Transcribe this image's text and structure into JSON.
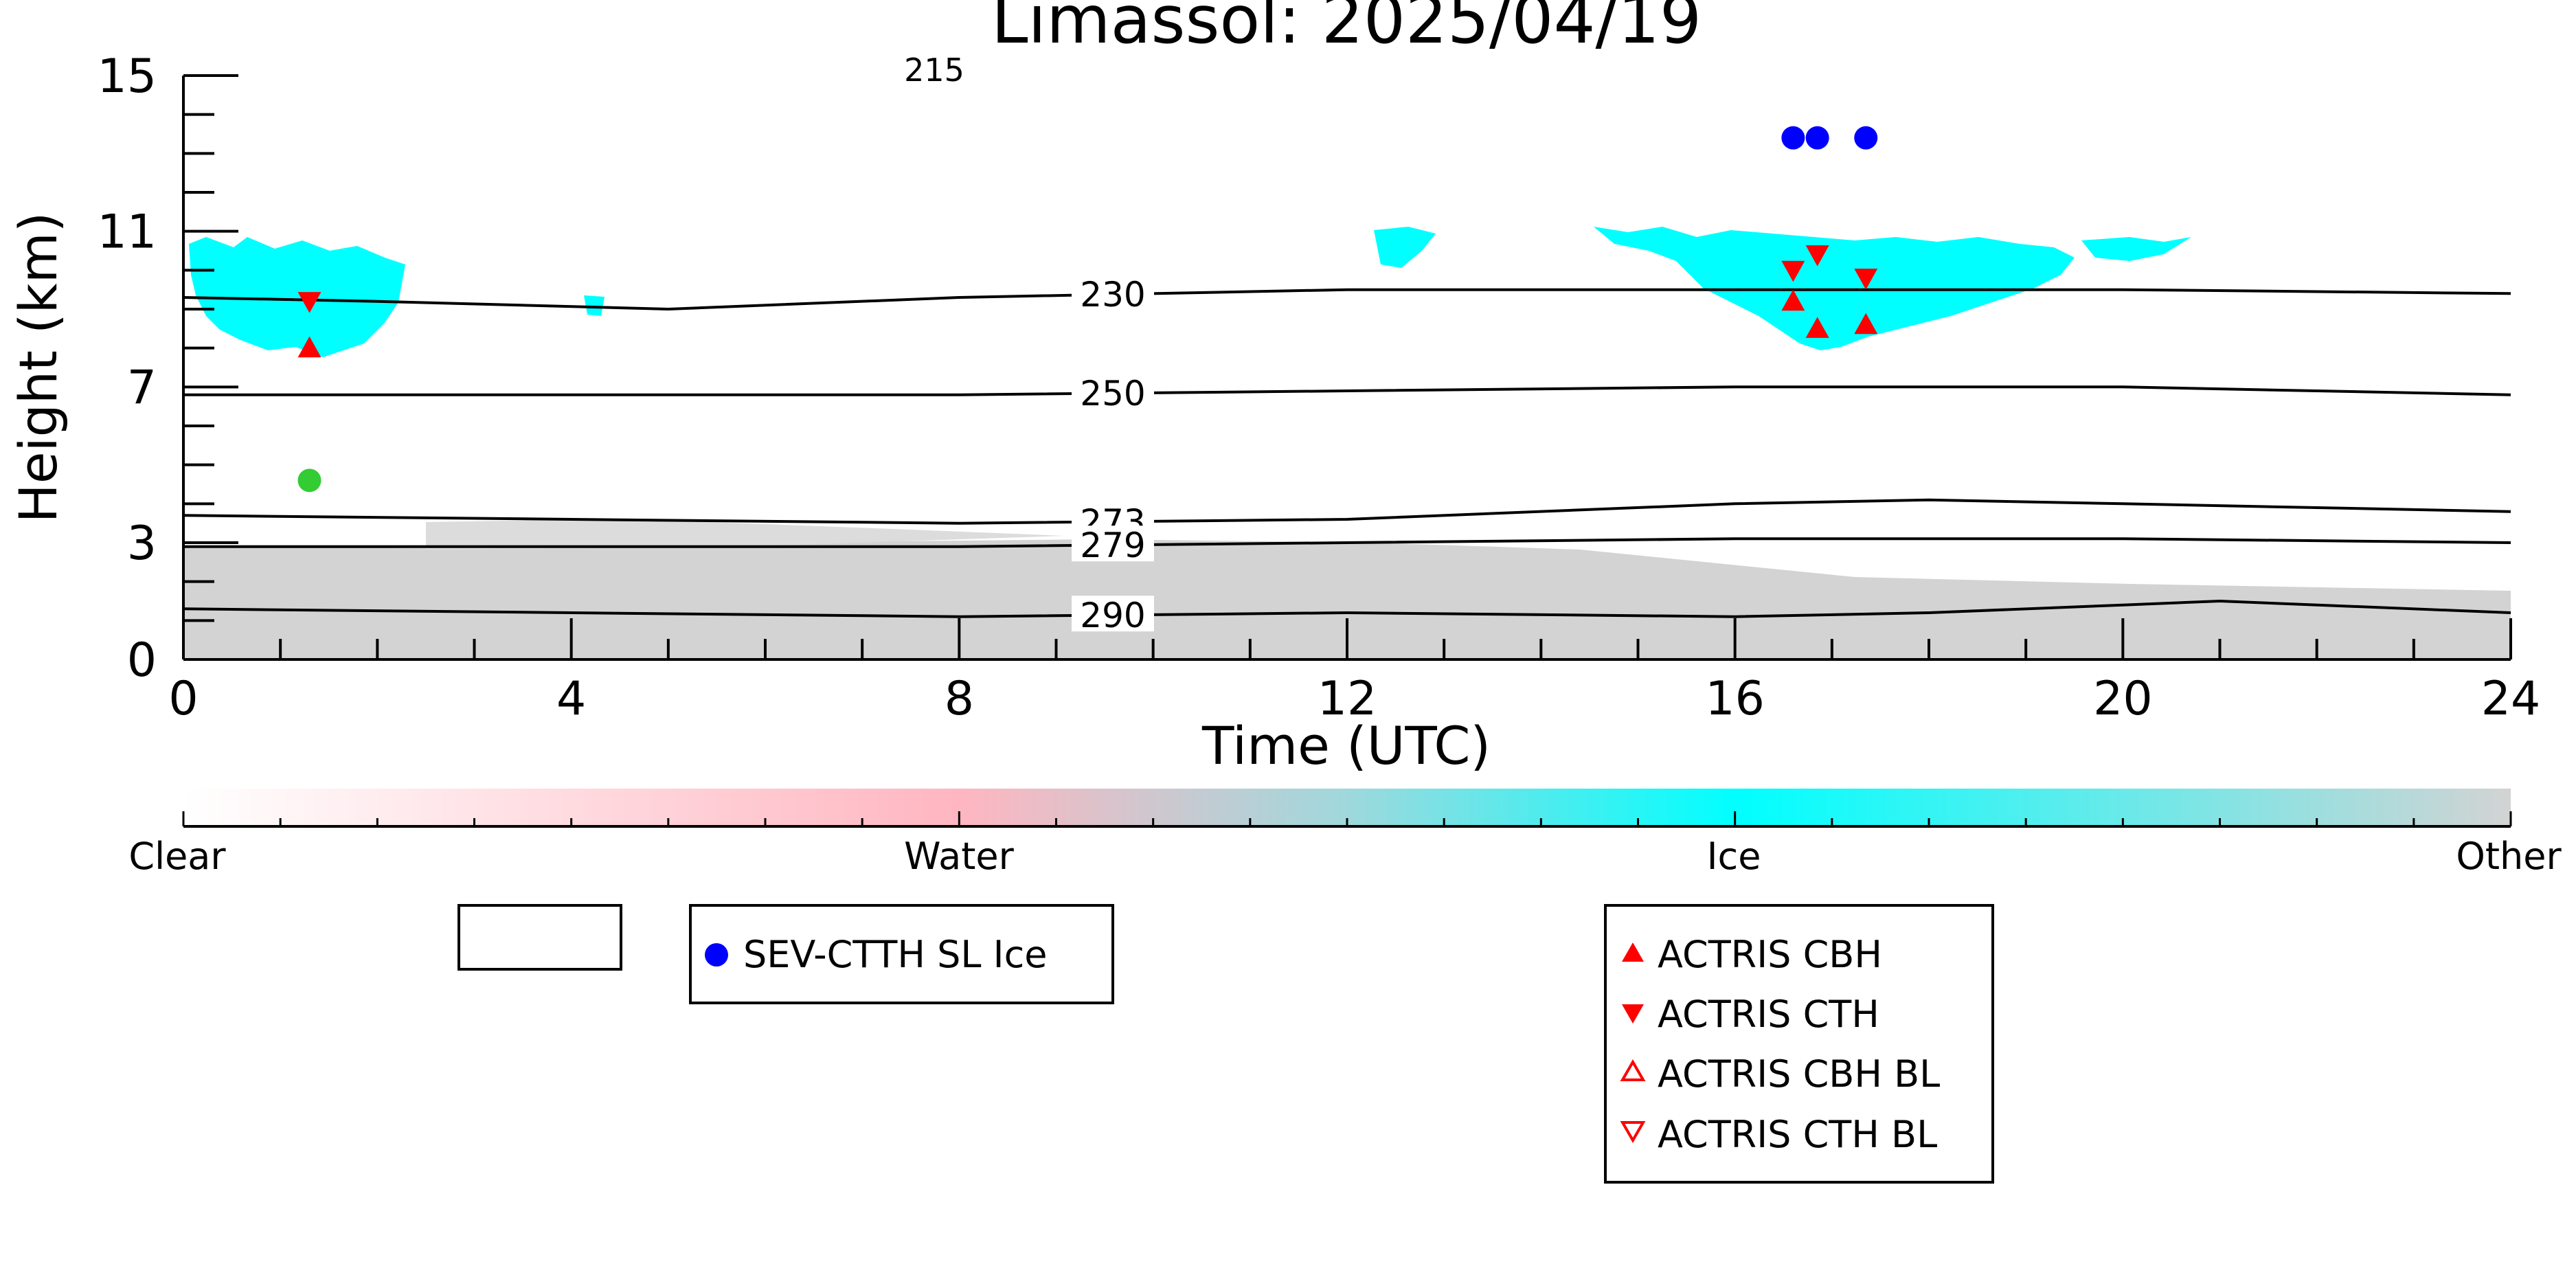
{
  "chart_data": {
    "type": "scatter",
    "title": "Limassol: 2025/04/19",
    "xlabel": "Time (UTC)",
    "ylabel": "Height (km)",
    "xlim": [
      0,
      24
    ],
    "ylim": [
      0,
      15
    ],
    "x_ticks": [
      "0",
      "4",
      "8",
      "12",
      "16",
      "20",
      "24"
    ],
    "y_ticks": [
      "0",
      "3",
      "7",
      "11",
      "15"
    ],
    "colorbar": {
      "labels": [
        "Clear",
        "Water",
        "Ice",
        "Other"
      ],
      "colors": [
        "#ffffff",
        "#ffb6c1",
        "#00ffff",
        "#d3d3d3"
      ]
    },
    "temperature_contours": [
      {
        "label": "230",
        "x": [
          0,
          2,
          5,
          8,
          12,
          16,
          20,
          24
        ],
        "y": [
          9.3,
          9.2,
          9.0,
          9.3,
          9.5,
          9.5,
          9.5,
          9.4
        ]
      },
      {
        "label": "250",
        "x": [
          0,
          4,
          8,
          12,
          16,
          20,
          24
        ],
        "y": [
          6.8,
          6.8,
          6.8,
          6.9,
          7.0,
          7.0,
          6.8
        ]
      },
      {
        "label": "273",
        "x": [
          0,
          4,
          8,
          12,
          16,
          18,
          20,
          24
        ],
        "y": [
          3.7,
          3.6,
          3.5,
          3.6,
          4.0,
          4.1,
          4.0,
          3.8
        ]
      },
      {
        "label": "279",
        "x": [
          0,
          4,
          8,
          12,
          16,
          20,
          24
        ],
        "y": [
          2.9,
          2.9,
          2.9,
          3.0,
          3.1,
          3.1,
          3.0
        ]
      },
      {
        "label": "290",
        "x": [
          0,
          4,
          8,
          12,
          16,
          18,
          20,
          21,
          24
        ],
        "y": [
          1.3,
          1.2,
          1.1,
          1.2,
          1.1,
          1.2,
          1.4,
          1.5,
          1.2
        ]
      }
    ],
    "partial_label": "215",
    "series": [
      {
        "name": "SEV-CTTH SL Ice",
        "color": "#0000ff",
        "marker": "circle",
        "x": [
          16.6,
          16.85,
          17.35
        ],
        "y": [
          13.4,
          13.4,
          13.4
        ]
      },
      {
        "name": "ACTRIS CBH",
        "color": "#ff0000",
        "marker": "triangle-up",
        "x": [
          1.3,
          16.6,
          16.85,
          17.35
        ],
        "y": [
          8.0,
          9.2,
          8.5,
          8.6
        ]
      },
      {
        "name": "ACTRIS CTH",
        "color": "#ff0000",
        "marker": "triangle-down",
        "x": [
          1.3,
          16.6,
          16.85,
          17.35
        ],
        "y": [
          9.2,
          10.0,
          10.4,
          9.8
        ]
      },
      {
        "name": "ACTRIS CBH BL",
        "color": "#ff0000",
        "marker": "triangle-up-open",
        "x": [],
        "y": []
      },
      {
        "name": "ACTRIS CTH BL",
        "color": "#ff0000",
        "marker": "triangle-down-open",
        "x": [],
        "y": []
      },
      {
        "name": "",
        "color": "#33cc33",
        "marker": "circle",
        "x": [
          1.3
        ],
        "y": [
          4.6
        ]
      }
    ],
    "legend": {
      "box1": [],
      "box2": [
        "SEV-CTTH SL Ice"
      ],
      "box3": [
        "ACTRIS CBH",
        "ACTRIS CTH",
        "ACTRIS CBH BL",
        "ACTRIS CTH BL"
      ]
    },
    "grid": false
  }
}
